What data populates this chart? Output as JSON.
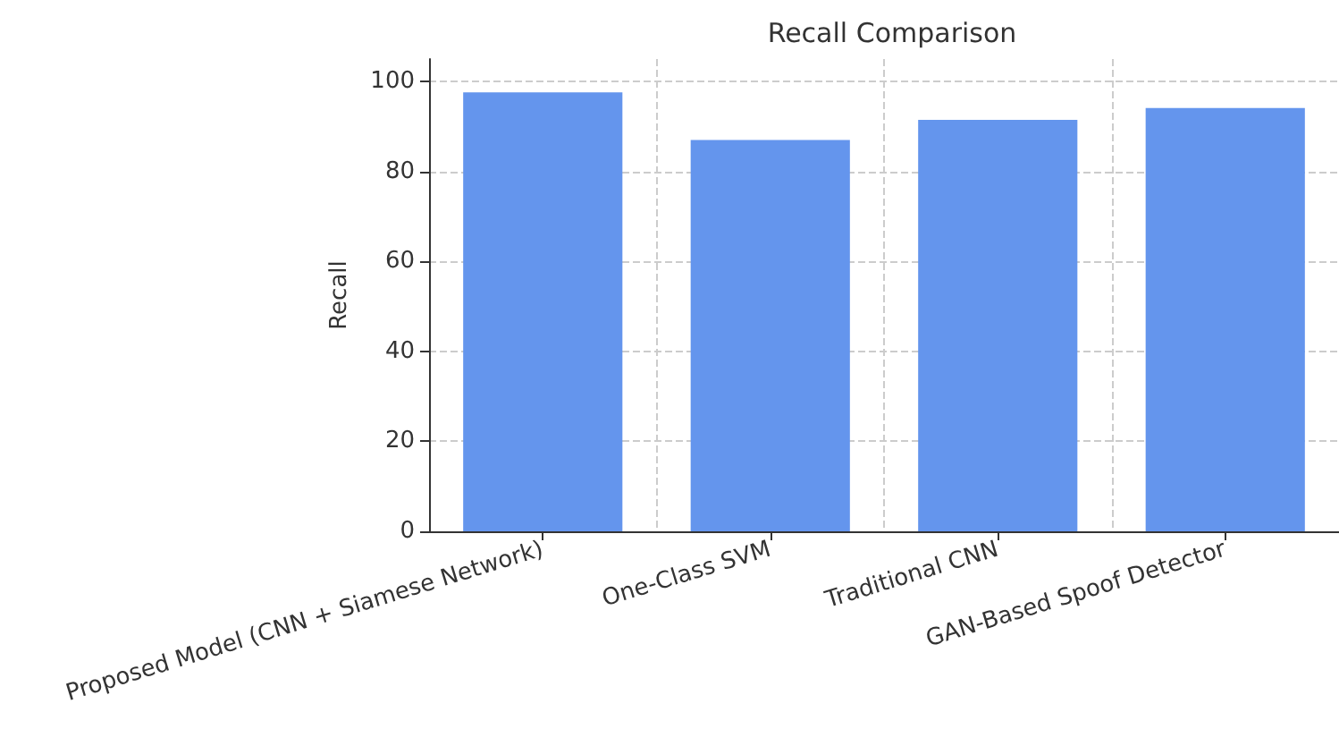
{
  "chart_data": {
    "type": "bar",
    "title": "Recall Comparison",
    "ylabel": "Recall",
    "categories": [
      "Proposed Model (CNN + Siamese Network)",
      "One-Class SVM",
      "Traditional CNN",
      "GAN-Based Spoof Detector"
    ],
    "values": [
      97.6,
      87.0,
      91.5,
      94.1
    ],
    "color": "#6495ed",
    "ylim": [
      0,
      105
    ],
    "yticks": [
      0,
      20,
      40,
      60,
      80,
      100
    ],
    "grid": true
  }
}
